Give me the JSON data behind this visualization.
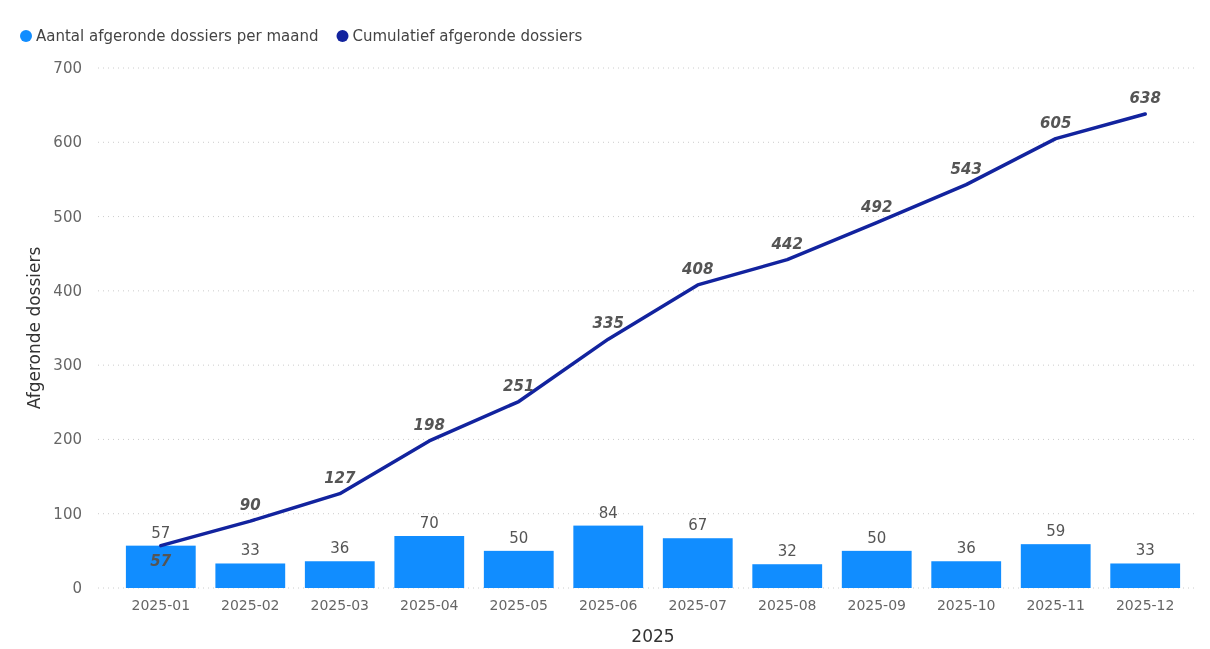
{
  "chart_data": {
    "type": "bar",
    "xlabel": "2025",
    "ylabel": "Afgeronde dossiers",
    "categories": [
      "2025-01",
      "2025-02",
      "2025-03",
      "2025-04",
      "2025-05",
      "2025-06",
      "2025-07",
      "2025-08",
      "2025-09",
      "2025-10",
      "2025-11",
      "2025-12"
    ],
    "series": [
      {
        "name": "Aantal afgeronde dossiers per maand",
        "color": "#118dff",
        "values": [
          57,
          33,
          36,
          70,
          50,
          84,
          67,
          32,
          50,
          36,
          59,
          33
        ]
      },
      {
        "name": "Cumulatief afgeronde dossiers",
        "type": "line",
        "color": "#12239e",
        "values": [
          57,
          90,
          127,
          198,
          251,
          335,
          408,
          442,
          492,
          543,
          605,
          638
        ]
      }
    ],
    "ylim": [
      0,
      700
    ],
    "yticks": [
      0,
      100,
      200,
      300,
      400,
      500,
      600,
      700
    ],
    "grid": "y",
    "legend": "top left",
    "data_labels": true,
    "marker": "none",
    "line_style": "solid"
  }
}
